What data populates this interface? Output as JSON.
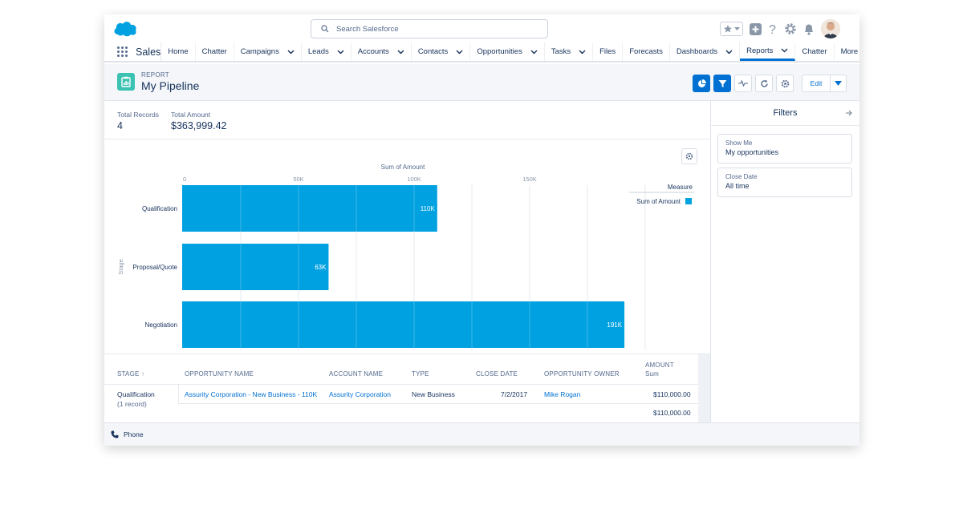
{
  "header": {
    "search_placeholder": "Search Salesforce"
  },
  "nav": {
    "app_name": "Sales",
    "tabs": [
      {
        "label": "Home",
        "dropdown": false
      },
      {
        "label": "Chatter",
        "dropdown": false
      },
      {
        "label": "Campaigns",
        "dropdown": true
      },
      {
        "label": "Leads",
        "dropdown": true
      },
      {
        "label": "Accounts",
        "dropdown": true
      },
      {
        "label": "Contacts",
        "dropdown": true
      },
      {
        "label": "Opportunities",
        "dropdown": true
      },
      {
        "label": "Tasks",
        "dropdown": true
      },
      {
        "label": "Files",
        "dropdown": false
      },
      {
        "label": "Forecasts",
        "dropdown": false
      },
      {
        "label": "Dashboards",
        "dropdown": true
      },
      {
        "label": "Reports",
        "dropdown": true,
        "active": true
      },
      {
        "label": "Chatter",
        "dropdown": false
      },
      {
        "label": "More",
        "dropdown": true
      }
    ]
  },
  "report": {
    "label": "REPORT",
    "title": "My Pipeline",
    "edit_label": "Edit"
  },
  "summary": {
    "total_records_label": "Total Records",
    "total_records": "4",
    "total_amount_label": "Total Amount",
    "total_amount": "$363,999.42"
  },
  "chart_data": {
    "type": "bar",
    "orientation": "horizontal",
    "title": "Sum of Amount",
    "ylabel": "Stage",
    "categories": [
      "Qualification",
      "Proposal/Quote",
      "Negotiation"
    ],
    "values": [
      110000,
      63000,
      191000
    ],
    "data_labels": [
      "110K",
      "63K",
      "191K"
    ],
    "xticks": [
      0,
      50000,
      100000,
      150000
    ],
    "xtick_labels": [
      "0",
      "50K",
      "100K",
      "150K"
    ],
    "xlim": [
      0,
      200000
    ],
    "legend": {
      "title": "Measure",
      "entries": [
        "Sum of Amount"
      ],
      "position": "top-right"
    },
    "color": "#00a1e0",
    "grid": true
  },
  "table": {
    "headers": {
      "stage": "STAGE",
      "opportunity_name": "OPPORTUNITY NAME",
      "account_name": "ACCOUNT NAME",
      "type": "TYPE",
      "close_date": "CLOSE DATE",
      "owner": "OPPORTUNITY OWNER",
      "amount": "AMOUNT",
      "amount_sub": "Sum"
    },
    "group": {
      "stage": "Qualification",
      "records": "(1 record)"
    },
    "row": {
      "opportunity_name": "Assurity Corporation - New Business - 110K",
      "account_name": "Assurity Corporation",
      "type": "New Business",
      "close_date": "7/2/2017",
      "owner": "Mike Rogan",
      "amount": "$110,000.00"
    },
    "subtotal": "$110,000.00"
  },
  "filters": {
    "title": "Filters",
    "items": [
      {
        "label": "Show Me",
        "value": "My opportunities"
      },
      {
        "label": "Close Date",
        "value": "All time"
      }
    ]
  },
  "footer": {
    "label": "Phone"
  },
  "colors": {
    "brand_blue": "#0070d2",
    "bar": "#00a1e0",
    "report_icon": "#3cc2b3"
  }
}
